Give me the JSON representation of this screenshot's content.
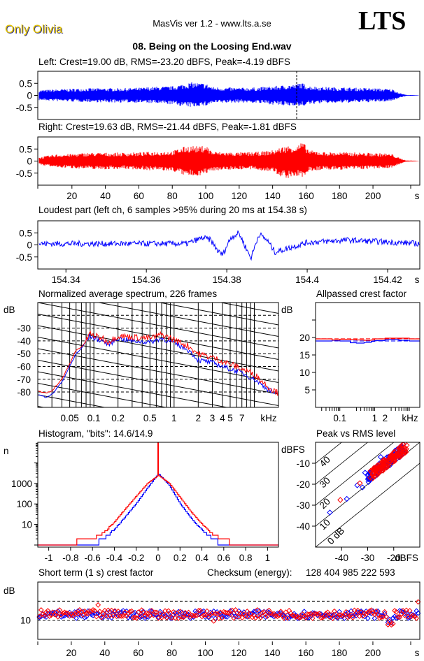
{
  "header": {
    "artist": "Only Olivia",
    "app_title": "MasVis ver 1.2 - www.lts.a.se",
    "logo": "LTS",
    "track_title": "08. Being on the Loosing End.wav"
  },
  "colors": {
    "left": "#0000ff",
    "right": "#ff0000",
    "artist": "#e8c800"
  },
  "chart_data": [
    {
      "id": "left-waveform",
      "type": "area",
      "title": "Left: Crest=19.00 dB, RMS=-23.20 dBFS, Peak=-4.19 dBFS",
      "channel": "left",
      "ylim": [
        -1,
        1
      ],
      "yticks": [
        0.5,
        0,
        -0.5
      ],
      "ytick_labels": [
        "0.5",
        "0",
        "-0.5"
      ],
      "xlim": [
        0,
        228
      ],
      "marker_line_s": 154.38,
      "envelope": {
        "x": [
          0,
          10,
          20,
          30,
          40,
          50,
          60,
          70,
          80,
          88,
          92,
          96,
          100,
          104,
          110,
          120,
          130,
          140,
          146,
          150,
          154,
          156,
          158,
          162,
          170,
          180,
          190,
          200,
          208,
          212,
          216,
          220,
          228
        ],
        "upper": [
          0.22,
          0.25,
          0.28,
          0.3,
          0.3,
          0.3,
          0.32,
          0.36,
          0.38,
          0.5,
          0.55,
          0.52,
          0.5,
          0.35,
          0.33,
          0.32,
          0.33,
          0.38,
          0.42,
          0.45,
          0.45,
          0.55,
          0.5,
          0.4,
          0.35,
          0.34,
          0.32,
          0.3,
          0.28,
          0.25,
          0.1,
          0.02,
          0.01
        ],
        "lower": [
          -0.2,
          -0.24,
          -0.26,
          -0.28,
          -0.3,
          -0.3,
          -0.3,
          -0.34,
          -0.38,
          -0.48,
          -0.5,
          -0.45,
          -0.45,
          -0.33,
          -0.32,
          -0.3,
          -0.32,
          -0.38,
          -0.44,
          -0.45,
          -0.4,
          -0.5,
          -0.45,
          -0.38,
          -0.33,
          -0.32,
          -0.3,
          -0.28,
          -0.26,
          -0.22,
          -0.1,
          -0.02,
          -0.01
        ]
      }
    },
    {
      "id": "right-waveform",
      "type": "area",
      "title": "Right: Crest=19.63 dB, RMS=-21.44 dBFS, Peak=-1.81 dBFS",
      "channel": "right",
      "ylim": [
        -1,
        1
      ],
      "yticks": [
        0.5,
        0,
        -0.5
      ],
      "ytick_labels": [
        "0.5",
        "0",
        "-0.5"
      ],
      "xlim": [
        0,
        228
      ],
      "xticks": [
        20,
        40,
        60,
        80,
        100,
        120,
        140,
        160,
        180,
        200
      ],
      "xtick_labels": [
        "20",
        "40",
        "60",
        "80",
        "100",
        "120",
        "140",
        "160",
        "180",
        "200"
      ],
      "xunit": "s",
      "envelope": {
        "x": [
          0,
          10,
          20,
          30,
          40,
          50,
          60,
          70,
          80,
          88,
          92,
          96,
          100,
          104,
          110,
          120,
          130,
          140,
          146,
          150,
          154,
          158,
          162,
          170,
          180,
          190,
          200,
          208,
          212,
          216,
          220,
          228
        ],
        "upper": [
          0.15,
          0.28,
          0.3,
          0.35,
          0.35,
          0.35,
          0.36,
          0.4,
          0.42,
          0.62,
          0.65,
          0.6,
          0.68,
          0.4,
          0.38,
          0.36,
          0.38,
          0.45,
          0.6,
          0.65,
          0.62,
          0.8,
          0.45,
          0.38,
          0.37,
          0.36,
          0.34,
          0.32,
          0.28,
          0.12,
          0.03,
          0.01
        ],
        "lower": [
          -0.15,
          -0.27,
          -0.3,
          -0.33,
          -0.35,
          -0.33,
          -0.35,
          -0.4,
          -0.42,
          -0.62,
          -0.65,
          -0.6,
          -0.55,
          -0.4,
          -0.37,
          -0.35,
          -0.37,
          -0.45,
          -0.7,
          -0.72,
          -0.65,
          -0.68,
          -0.42,
          -0.37,
          -0.36,
          -0.35,
          -0.33,
          -0.3,
          -0.27,
          -0.12,
          -0.03,
          -0.01
        ]
      }
    },
    {
      "id": "loudest-part",
      "type": "line",
      "title": "Loudest part (left  ch, 6 samples >95% during 20 ms at 154.38 s)",
      "channel": "left",
      "ylim": [
        -1,
        1
      ],
      "yticks": [
        0.5,
        0,
        -0.5
      ],
      "ytick_labels": [
        "0.5",
        "0",
        "-0.5"
      ],
      "xlim": [
        154.333,
        154.428
      ],
      "xticks": [
        154.34,
        154.36,
        154.38,
        154.4,
        154.42
      ],
      "xtick_labels": [
        "154.34",
        "154.36",
        "154.38",
        "154.4",
        "154.42"
      ],
      "xunit": "s",
      "key_points": {
        "t": [
          154.333,
          154.37,
          154.374,
          154.376,
          154.378,
          154.379,
          154.381,
          154.383,
          154.385,
          154.386,
          154.388,
          154.39,
          154.392,
          154.4,
          154.41,
          154.428
        ],
        "v": [
          0.05,
          0.05,
          0.3,
          0.2,
          -0.3,
          -0.4,
          0.3,
          0.5,
          -0.2,
          -0.55,
          0.45,
          0.2,
          -0.3,
          0.1,
          0.2,
          0.05
        ]
      },
      "noise_amplitude": 0.12
    },
    {
      "id": "average-spectrum",
      "type": "line",
      "title": "Normalized average spectrum, 226 frames",
      "ylabel": "dB",
      "yticks": [
        -30,
        -40,
        -50,
        -60,
        -70,
        -80
      ],
      "ytick_labels": [
        "-30",
        "-40",
        "-50",
        "-60",
        "-70",
        "-80"
      ],
      "ylim": [
        -90,
        0
      ],
      "xscale": "log",
      "xlim_khz": [
        0.02,
        20
      ],
      "xtick_labels": [
        "0.05",
        "0.1",
        "0.2",
        "0.5",
        "1",
        "2",
        "3",
        "4",
        "5",
        "7",
        "kHz"
      ],
      "xtick_values_khz": [
        0.05,
        0.1,
        0.2,
        0.5,
        1,
        2,
        3,
        4,
        5,
        7
      ],
      "dashed_grid_db": [
        -20,
        -30,
        -40,
        -50,
        -60,
        -70,
        -80
      ],
      "slope_lines": "diagonal reference lines (pink-noise slope)",
      "series": [
        {
          "name": "left",
          "color": "#0000ff",
          "freq_khz": [
            0.02,
            0.025,
            0.03,
            0.04,
            0.05,
            0.06,
            0.07,
            0.08,
            0.09,
            0.1,
            0.13,
            0.15,
            0.2,
            0.3,
            0.5,
            0.7,
            1,
            1.5,
            2,
            3,
            4,
            5,
            7,
            10,
            15,
            20
          ],
          "db": [
            -82,
            -84,
            -82,
            -72,
            -60,
            -50,
            -46,
            -40,
            -36,
            -38,
            -40,
            -43,
            -38,
            -40,
            -41,
            -38,
            -42,
            -47,
            -55,
            -57,
            -60,
            -62,
            -65,
            -70,
            -78,
            -83
          ],
          "jitter_db": 4
        },
        {
          "name": "right",
          "color": "#ff0000",
          "freq_khz": [
            0.02,
            0.025,
            0.03,
            0.04,
            0.05,
            0.06,
            0.07,
            0.08,
            0.09,
            0.1,
            0.13,
            0.15,
            0.2,
            0.3,
            0.5,
            0.7,
            1,
            1.5,
            2,
            3,
            4,
            5,
            7,
            10,
            15,
            20
          ],
          "db": [
            -79,
            -81,
            -79,
            -70,
            -58,
            -47,
            -45,
            -40,
            -34,
            -36,
            -38,
            -41,
            -36,
            -37,
            -38,
            -35,
            -39,
            -44,
            -50,
            -53,
            -56,
            -58,
            -62,
            -66,
            -76,
            -81
          ],
          "jitter_db": 5
        }
      ]
    },
    {
      "id": "allpassed-crest-factor",
      "type": "line",
      "title": "Allpassed crest factor",
      "ylabel": "dB",
      "yticks": [
        20,
        15,
        10,
        5
      ],
      "ytick_labels": [
        "20",
        "15",
        "10",
        "5"
      ],
      "ylim": [
        0,
        30
      ],
      "xscale": "log",
      "xtick_labels": [
        "0.1",
        "1",
        "2",
        "kHz"
      ],
      "series": [
        {
          "name": "left",
          "color": "#0000ff",
          "reference_db": 19.0,
          "freq_khz": [
            0.02,
            0.06,
            0.1,
            0.2,
            0.3,
            0.5,
            0.8,
            1,
            2,
            5,
            10,
            20
          ],
          "db": [
            19.0,
            19.2,
            19.0,
            18.5,
            18.4,
            18.6,
            18.9,
            19.1,
            19.4,
            19.2,
            19.0,
            19.0
          ]
        },
        {
          "name": "right",
          "color": "#ff0000",
          "reference_db": 19.63,
          "freq_khz": [
            0.02,
            0.06,
            0.1,
            0.2,
            0.3,
            0.5,
            0.8,
            1,
            2,
            5,
            10,
            20
          ],
          "db": [
            19.6,
            19.3,
            19.5,
            19.4,
            19.3,
            19.2,
            19.3,
            19.6,
            19.8,
            19.8,
            19.6,
            19.6
          ]
        }
      ]
    },
    {
      "id": "histogram",
      "type": "line",
      "title": "Histogram, \"bits\": 14.6/14.9",
      "ylabel": "n",
      "yscale": "log",
      "ytick_labels": [
        "1000",
        "100",
        "10"
      ],
      "ytick_values": [
        1000,
        100,
        10
      ],
      "ylim": [
        1,
        100000
      ],
      "xlim": [
        -1.1,
        1.1
      ],
      "xticks": [
        -1,
        -0.8,
        -0.6,
        -0.4,
        -0.2,
        0,
        0.2,
        0.4,
        0.6,
        0.8,
        1
      ],
      "xtick_labels": [
        "-1",
        "-0.8",
        "-0.6",
        "-0.4",
        "-0.2",
        "0",
        "0.2",
        "0.4",
        "0.6",
        "0.8",
        "1"
      ],
      "series": [
        {
          "name": "left",
          "color": "#0000ff",
          "x": [
            -0.72,
            -0.6,
            -0.5,
            -0.4,
            -0.3,
            -0.2,
            -0.1,
            0,
            0.1,
            0.2,
            0.3,
            0.4,
            0.5,
            0.6,
            0.7
          ],
          "n": [
            1,
            1,
            2,
            6,
            25,
            110,
            600,
            3000,
            800,
            100,
            20,
            5,
            2,
            1,
            1
          ]
        },
        {
          "name": "right",
          "color": "#ff0000",
          "x": [
            -0.82,
            -0.7,
            -0.6,
            -0.5,
            -0.4,
            -0.3,
            -0.2,
            -0.1,
            0,
            0.1,
            0.2,
            0.3,
            0.4,
            0.5,
            0.6,
            0.7,
            0.82
          ],
          "n": [
            1,
            2,
            2,
            4,
            14,
            60,
            250,
            1000,
            2500,
            1000,
            200,
            40,
            10,
            3,
            2,
            1,
            1
          ],
          "spike_at_zero": 100000
        }
      ]
    },
    {
      "id": "peak-vs-rms",
      "type": "scatter",
      "title": "Peak vs RMS level",
      "xlabel": "dBFS",
      "ylabel": "dBFS",
      "xlim": [
        -50,
        -10
      ],
      "ylim": [
        -50,
        0
      ],
      "xticks": [
        -40,
        -30,
        -20
      ],
      "xtick_labels": [
        "-40",
        "-30",
        "-20"
      ],
      "yticks": [
        -10,
        -20,
        -30,
        -40
      ],
      "ytick_labels": [
        "-10",
        "-20",
        "-30",
        "-40"
      ],
      "crest_lines_db": [
        0,
        10,
        20,
        30,
        40
      ],
      "crest_line_labels": [
        "0 dB",
        "10",
        "20",
        "30",
        "40"
      ],
      "series": [
        {
          "name": "left",
          "color": "#0000ff",
          "cluster": {
            "rms_center": -23,
            "peak_center": -10,
            "count": 100
          },
          "outliers": [
            [
              -44.5,
              -33.5
            ],
            [
              -38,
              -27
            ],
            [
              -34,
              -20.5
            ],
            [
              -32,
              -21.5
            ],
            [
              -31,
              -14.5
            ],
            [
              -25,
              -7
            ]
          ]
        },
        {
          "name": "right",
          "color": "#ff0000",
          "cluster": {
            "rms_center": -22,
            "peak_center": -9,
            "count": 130
          },
          "outliers": [
            [
              -40.5,
              -27.5
            ],
            [
              -33,
              -19.5
            ]
          ]
        }
      ]
    },
    {
      "id": "short-term-crest",
      "type": "scatter",
      "title": "Short term (1 s) crest factor",
      "ylabel": "dB",
      "yticks": [
        10
      ],
      "ytick_labels": [
        "10"
      ],
      "ylim": [
        5,
        20
      ],
      "dashed_grid_db": [
        10,
        15
      ],
      "xlim": [
        0,
        228
      ],
      "xticks": [
        20,
        40,
        60,
        80,
        100,
        120,
        140,
        160,
        180,
        200
      ],
      "xtick_labels": [
        "20",
        "40",
        "60",
        "80",
        "100",
        "120",
        "140",
        "160",
        "180",
        "200"
      ],
      "xunit": "s",
      "series": [
        {
          "name": "left",
          "color": "#0000ff",
          "mean_db": 11.5,
          "spread_db": 1.0
        },
        {
          "name": "right",
          "color": "#ff0000",
          "mean_db": 11.6,
          "spread_db": 1.1,
          "notable": [
            [
              36,
              14.0
            ],
            [
              105,
              9.8
            ],
            [
              211,
              8.8
            ],
            [
              227,
              14.8
            ]
          ]
        }
      ]
    }
  ],
  "checksum": {
    "label": "Checksum (energy):",
    "value": "128 404 985 222 593"
  }
}
